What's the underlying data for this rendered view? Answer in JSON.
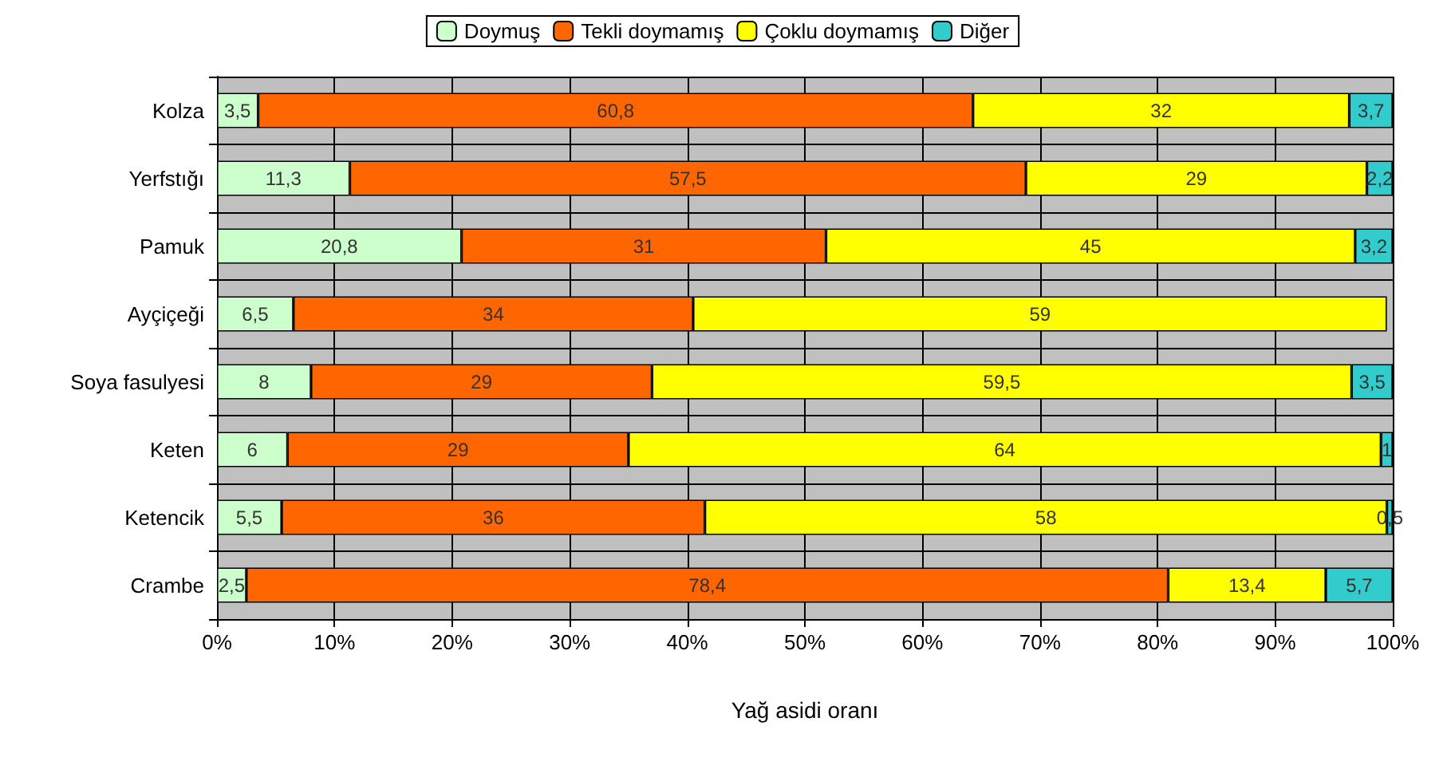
{
  "chart_data": {
    "type": "bar",
    "orientation": "horizontal",
    "stacked": true,
    "xlabel": "Yağ asidi oranı",
    "categories": [
      "Kolza",
      "Yerfstığı",
      "Pamuk",
      "Ayçiçeği",
      "Soya fasulyesi",
      "Keten",
      "Ketencik",
      "Crambe"
    ],
    "series": [
      {
        "name": "Doymuş",
        "color": "#ccffcc",
        "values": [
          3.5,
          11.3,
          20.8,
          6.5,
          8,
          6,
          5.5,
          2.5
        ],
        "value_labels": [
          "3,5",
          "11,3",
          "20,8",
          "6,5",
          "8",
          "6",
          "5,5",
          "2,5"
        ]
      },
      {
        "name": "Tekli doymamış",
        "color": "#ff6600",
        "values": [
          60.8,
          57.5,
          31,
          34,
          29,
          29,
          36,
          78.4
        ],
        "value_labels": [
          "60,8",
          "57,5",
          "31",
          "34",
          "29",
          "29",
          "36",
          "78,4"
        ]
      },
      {
        "name": "Çoklu doymamış",
        "color": "#ffff00",
        "values": [
          32,
          29,
          45,
          59,
          59.5,
          64,
          58,
          13.4
        ],
        "value_labels": [
          "32",
          "29",
          "45",
          "59",
          "59,5",
          "64",
          "58",
          "13,4"
        ]
      },
      {
        "name": "Diğer",
        "color": "#33cccc",
        "values": [
          3.7,
          2.2,
          3.2,
          null,
          3.5,
          1,
          0.5,
          5.7
        ],
        "value_labels": [
          "3,7",
          "2,2",
          "3,2",
          null,
          "3,5",
          "1",
          "0,5",
          "5,7"
        ]
      }
    ],
    "xlim": [
      0,
      100
    ],
    "xticks": [
      {
        "value": 0,
        "label": "0%"
      },
      {
        "value": 10,
        "label": "10%"
      },
      {
        "value": 20,
        "label": "20%"
      },
      {
        "value": 30,
        "label": "30%"
      },
      {
        "value": 40,
        "label": "40%"
      },
      {
        "value": 50,
        "label": "50%"
      },
      {
        "value": 60,
        "label": "60%"
      },
      {
        "value": 70,
        "label": "70%"
      },
      {
        "value": 80,
        "label": "80%"
      },
      {
        "value": 90,
        "label": "90%"
      },
      {
        "value": 100,
        "label": "100%"
      }
    ],
    "grid": true,
    "legend": "top"
  }
}
